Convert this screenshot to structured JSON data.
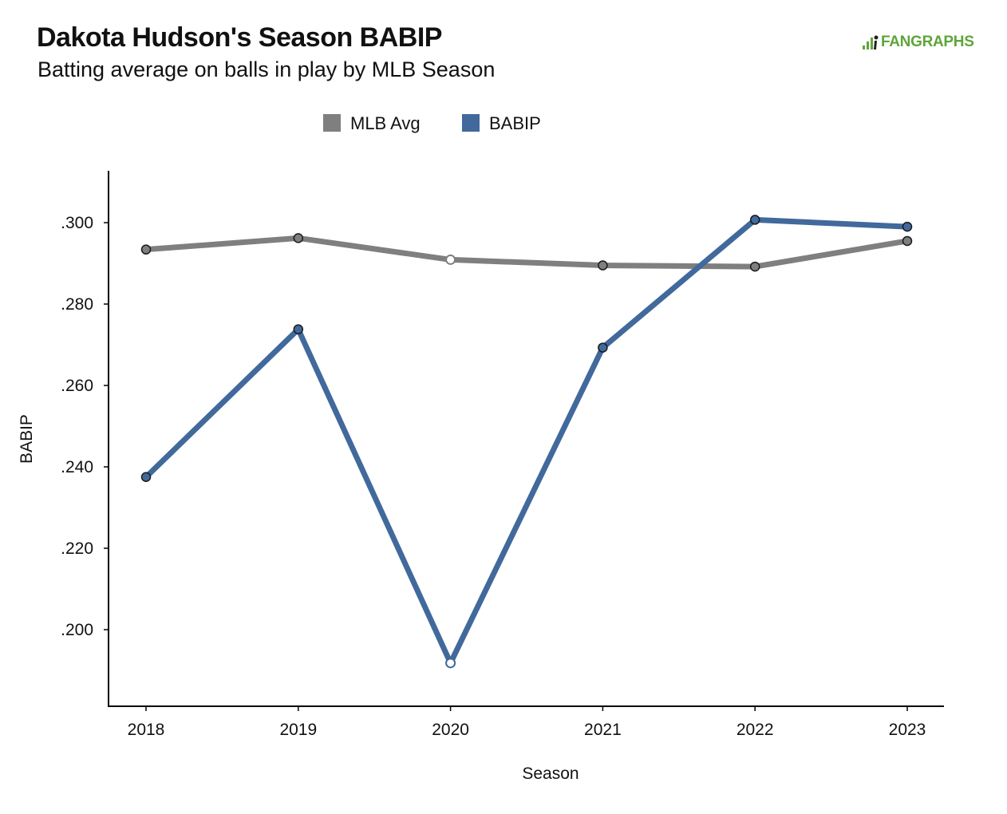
{
  "header": {
    "title": "Dakota Hudson's Season BABIP",
    "subtitle": "Batting average on balls in play by MLB Season",
    "logo_text": "FANGRAPHS"
  },
  "colors": {
    "mlb_avg": "#7f7f7f",
    "babip": "#41699c",
    "axis": "#000000",
    "logo": "#5fa53a"
  },
  "chart_data": {
    "type": "line",
    "title": "Dakota Hudson's Season BABIP",
    "subtitle": "Batting average on balls in play by MLB Season",
    "xlabel": "Season",
    "ylabel": "BABIP",
    "x": [
      "2018",
      "2019",
      "2020",
      "2021",
      "2022",
      "2023"
    ],
    "yticks": [
      ".200",
      ".220",
      ".240",
      ".260",
      ".280",
      ".300"
    ],
    "ytick_values": [
      0.2,
      0.22,
      0.24,
      0.26,
      0.28,
      0.3
    ],
    "ylim": [
      0.181,
      0.314
    ],
    "grid": false,
    "legend_position": "top-center",
    "series": [
      {
        "name": "MLB Avg",
        "values": [
          0.2934,
          0.2962,
          0.2909,
          0.2895,
          0.2892,
          0.2955
        ]
      },
      {
        "name": "BABIP",
        "values": [
          0.2375,
          0.2738,
          0.1918,
          0.2693,
          0.3007,
          0.299
        ]
      }
    ],
    "hollow_points": [
      "2020"
    ]
  }
}
